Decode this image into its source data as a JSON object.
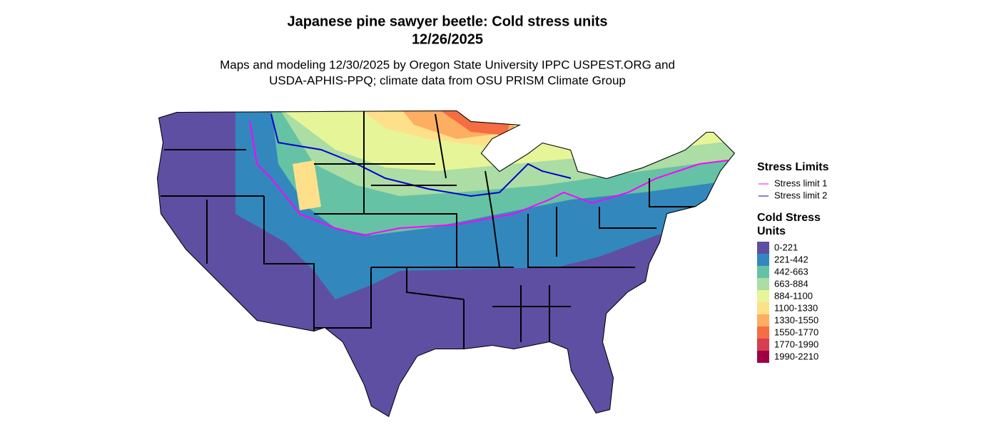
{
  "title": [
    "Japanese pine sawyer beetle: Cold stress units",
    "12/26/2025"
  ],
  "subtitle": [
    "Maps and modeling 12/30/2025 by Oregon State University IPPC USPEST.ORG and",
    "USDA-APHIS-PPQ; climate data from OSU PRISM Climate Group"
  ],
  "legend": {
    "limits": {
      "title": "Stress Limits",
      "items": [
        {
          "label": "Stress limit 1",
          "color": "#ff00ff"
        },
        {
          "label": "Stress limit 2",
          "color": "#0000cd"
        }
      ]
    },
    "units": {
      "title": [
        "Cold Stress",
        "Units"
      ],
      "items": [
        {
          "label": "0-221",
          "color": "#5e4fa2"
        },
        {
          "label": "221-442",
          "color": "#3288bd"
        },
        {
          "label": "442-663",
          "color": "#66c2a5"
        },
        {
          "label": "663-884",
          "color": "#abdda4"
        },
        {
          "label": "884-1100",
          "color": "#e6f598"
        },
        {
          "label": "1100-1330",
          "color": "#fee08b"
        },
        {
          "label": "1330-1550",
          "color": "#fdae61"
        },
        {
          "label": "1550-1770",
          "color": "#f46d43"
        },
        {
          "label": "1770-1990",
          "color": "#d53e4f"
        },
        {
          "label": "1990-2210",
          "color": "#9e0142"
        }
      ]
    }
  }
}
